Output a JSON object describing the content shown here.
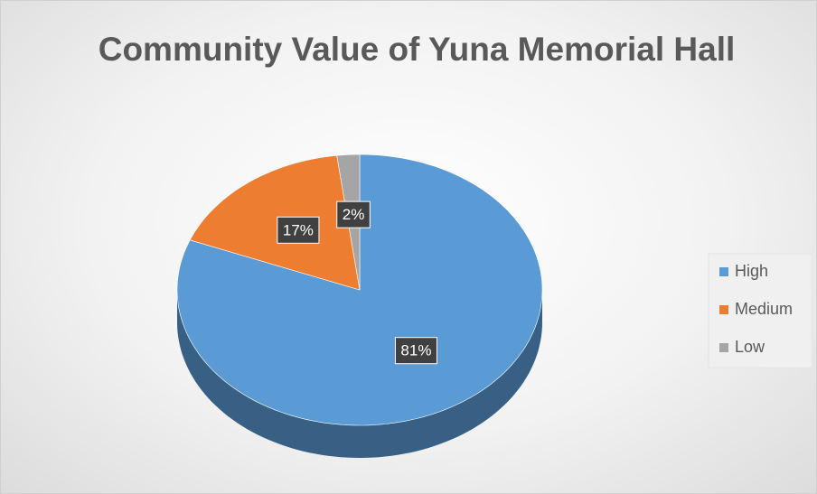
{
  "chart_data": {
    "type": "pie",
    "title": "Community Value of Yuna Memorial Hall",
    "categories": [
      "High",
      "Medium",
      "Low"
    ],
    "values": [
      81,
      17,
      2
    ],
    "value_labels": [
      "81%",
      "17%",
      "2%"
    ],
    "colors": [
      "#5b9bd5",
      "#ed7d31",
      "#a5a5a5"
    ],
    "legend": "right"
  }
}
